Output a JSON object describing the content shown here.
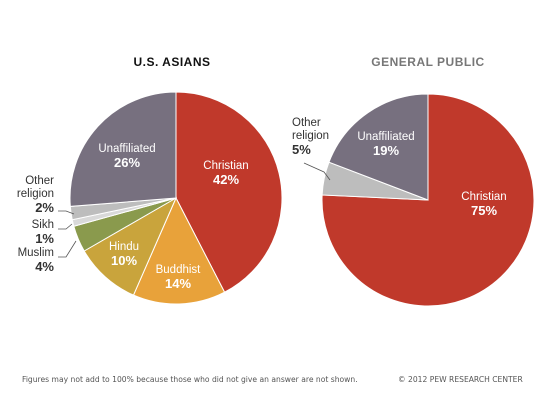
{
  "chart_data": [
    {
      "type": "pie",
      "title": "U.S. ASIANS",
      "slices": [
        {
          "label": "Christian",
          "value": 42,
          "value_label": "42%",
          "color": "#c0392b"
        },
        {
          "label": "Buddhist",
          "value": 14,
          "value_label": "14%",
          "color": "#e8a23a"
        },
        {
          "label": "Hindu",
          "value": 10,
          "value_label": "10%",
          "color": "#c9a43c"
        },
        {
          "label": "Muslim",
          "value": 4,
          "value_label": "4%",
          "color": "#8a9a4d"
        },
        {
          "label": "Sikh",
          "value": 1,
          "value_label": "1%",
          "color": "#d9d9d9"
        },
        {
          "label": "Other religion",
          "value": 2,
          "value_label": "2%",
          "color": "#bdbdbd"
        },
        {
          "label": "Unaffiliated",
          "value": 26,
          "value_label": "26%",
          "color": "#77707f"
        }
      ]
    },
    {
      "type": "pie",
      "title": "GENERAL PUBLIC",
      "slices": [
        {
          "label": "Christian",
          "value": 75,
          "value_label": "75%",
          "color": "#c0392b"
        },
        {
          "label": "Other religion",
          "value": 5,
          "value_label": "5%",
          "color": "#bdbdbd"
        },
        {
          "label": "Unaffiliated",
          "value": 19,
          "value_label": "19%",
          "color": "#77707f"
        }
      ]
    }
  ],
  "footer": {
    "note": "Figures may not add to 100% because those who did not give an answer are not shown.",
    "credit": "© 2012 PEW RESEARCH CENTER"
  },
  "colors": {
    "title_left": "#111111",
    "title_right": "#777777",
    "label_light": "#ffffff",
    "label_dark": "#333333",
    "leader": "#555555"
  }
}
